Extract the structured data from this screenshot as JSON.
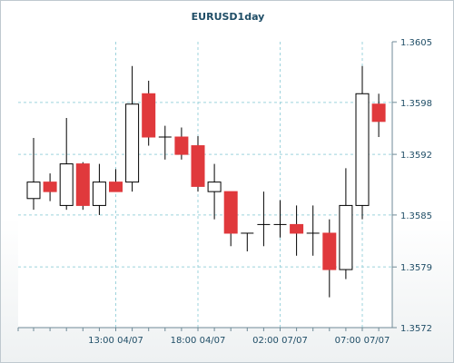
{
  "chart_data": {
    "type": "candlestick",
    "title": "EURUSD1day",
    "xlabel": "",
    "ylabel": "",
    "ylim": [
      1.3572,
      1.3605
    ],
    "y_ticks": [
      "1.3572",
      "1.3579",
      "1.3585",
      "1.3592",
      "1.3598",
      "1.3605"
    ],
    "x_ticks": [
      {
        "label": "13:00 04/07",
        "index": 5
      },
      {
        "label": "18:00 04/07",
        "index": 10
      },
      {
        "label": "02:00 07/07",
        "index": 15
      },
      {
        "label": "07:00 07/07",
        "index": 20
      }
    ],
    "grid": true,
    "bull_color": "#ffffff",
    "bear_color": "#e0393c",
    "candles": [
      {
        "open": 1.35869,
        "high": 1.35939,
        "low": 1.35856,
        "close": 1.35888
      },
      {
        "open": 1.35888,
        "high": 1.35898,
        "low": 1.35866,
        "close": 1.35877
      },
      {
        "open": 1.35861,
        "high": 1.35962,
        "low": 1.35856,
        "close": 1.35909
      },
      {
        "open": 1.35909,
        "high": 1.35911,
        "low": 1.35856,
        "close": 1.35861
      },
      {
        "open": 1.35861,
        "high": 1.35909,
        "low": 1.3585,
        "close": 1.35888
      },
      {
        "open": 1.35888,
        "high": 1.35903,
        "low": 1.35877,
        "close": 1.35877
      },
      {
        "open": 1.35888,
        "high": 1.36022,
        "low": 1.35877,
        "close": 1.35978
      },
      {
        "open": 1.3599,
        "high": 1.36005,
        "low": 1.3593,
        "close": 1.3594
      },
      {
        "open": 1.3594,
        "high": 1.35953,
        "low": 1.35914,
        "close": 1.3594
      },
      {
        "open": 1.3594,
        "high": 1.35951,
        "low": 1.35914,
        "close": 1.3592
      },
      {
        "open": 1.3593,
        "high": 1.35941,
        "low": 1.35877,
        "close": 1.35883
      },
      {
        "open": 1.35877,
        "high": 1.35909,
        "low": 1.35845,
        "close": 1.35888
      },
      {
        "open": 1.35877,
        "high": 1.35877,
        "low": 1.35814,
        "close": 1.35829
      },
      {
        "open": 1.35829,
        "high": 1.35829,
        "low": 1.35808,
        "close": 1.35829
      },
      {
        "open": 1.35839,
        "high": 1.35877,
        "low": 1.35814,
        "close": 1.35839
      },
      {
        "open": 1.35839,
        "high": 1.35867,
        "low": 1.35824,
        "close": 1.35839
      },
      {
        "open": 1.35839,
        "high": 1.35861,
        "low": 1.35803,
        "close": 1.35829
      },
      {
        "open": 1.35829,
        "high": 1.35861,
        "low": 1.35803,
        "close": 1.35829
      },
      {
        "open": 1.35829,
        "high": 1.35845,
        "low": 1.35755,
        "close": 1.35787
      },
      {
        "open": 1.35787,
        "high": 1.35904,
        "low": 1.35776,
        "close": 1.35861
      },
      {
        "open": 1.35861,
        "high": 1.36022,
        "low": 1.35845,
        "close": 1.3599
      },
      {
        "open": 1.35978,
        "high": 1.3599,
        "low": 1.3594,
        "close": 1.35958
      }
    ]
  }
}
